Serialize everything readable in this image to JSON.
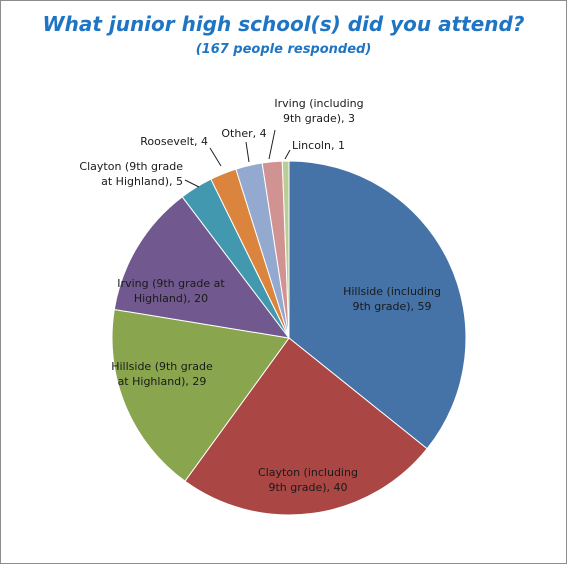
{
  "chart_data": {
    "type": "pie",
    "title": "What junior high school(s) did you attend?",
    "subtitle": "(167 people responded)",
    "slices": [
      {
        "name": "Hillside (including 9th grade)",
        "value": 59,
        "color": "#4572a7",
        "label_lines": [
          "Hillside (including",
          "9th grade), 59"
        ]
      },
      {
        "name": "Clayton (including 9th grade)",
        "value": 40,
        "color": "#aa4643",
        "label_lines": [
          "Clayton (including",
          "9th grade), 40"
        ]
      },
      {
        "name": "Hillside (9th grade at Highland)",
        "value": 29,
        "color": "#89a54e",
        "label_lines": [
          "Hillside (9th grade",
          "at Highland), 29"
        ]
      },
      {
        "name": "Irving (9th grade at Highland)",
        "value": 20,
        "color": "#71588f",
        "label_lines": [
          "Irving (9th grade at",
          "Highland), 20"
        ]
      },
      {
        "name": "Clayton (9th grade at Highland)",
        "value": 5,
        "color": "#4198af",
        "label_lines": [
          "Clayton (9th grade",
          "at Highland), 5"
        ]
      },
      {
        "name": "Roosevelt",
        "value": 4,
        "color": "#db843d",
        "label_lines": [
          "Roosevelt, 4"
        ]
      },
      {
        "name": "Other",
        "value": 4,
        "color": "#93a9cf",
        "label_lines": [
          "Other, 4"
        ]
      },
      {
        "name": "Irving (including 9th grade)",
        "value": 3,
        "color": "#d19392",
        "label_lines": [
          "Irving (including",
          "9th grade), 3"
        ]
      },
      {
        "name": "Lincoln",
        "value": 1,
        "color": "#b9cd96",
        "label_lines": [
          "Lincoln, 1"
        ]
      }
    ],
    "start_angle_deg": 0,
    "direction": "clockwise",
    "legend": "none"
  }
}
